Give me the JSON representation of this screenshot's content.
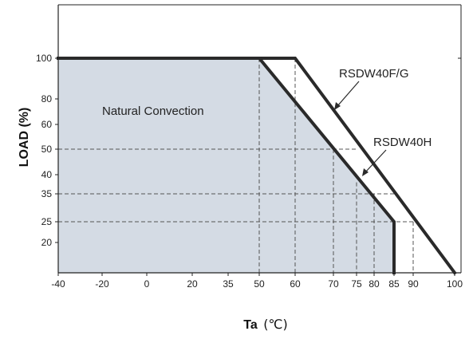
{
  "chart_data": {
    "type": "line",
    "title": "",
    "xlabel": "Ta",
    "xlabel_unit": "(℃)",
    "ylabel": "LOAD (%)",
    "xlim": [
      -40,
      100
    ],
    "ylim": [
      10,
      110
    ],
    "x_ticks": [
      -40,
      -20,
      0,
      20,
      35,
      50,
      60,
      70,
      75,
      80,
      85,
      90,
      100
    ],
    "y_ticks": [
      20,
      25,
      35,
      40,
      50,
      60,
      80,
      100
    ],
    "grid": false,
    "series": [
      {
        "name": "RSDW40F/G",
        "x": [
          -40,
          60,
          100
        ],
        "y": [
          100,
          100,
          10
        ]
      },
      {
        "name": "RSDW40H",
        "x": [
          -40,
          50,
          85,
          85
        ],
        "y": [
          100,
          100,
          25,
          10
        ]
      }
    ],
    "shaded_region_label": "Natural Convection",
    "guide_lines": [
      {
        "axis": "x",
        "value": 50,
        "y_top": 100
      },
      {
        "axis": "x",
        "value": 60,
        "y_top": 100
      },
      {
        "axis": "x",
        "value": 70,
        "y_top": 50
      },
      {
        "axis": "x",
        "value": 75,
        "y_top": 38
      },
      {
        "axis": "x",
        "value": 80,
        "y_top": 35
      },
      {
        "axis": "x",
        "value": 90,
        "y_top": 25
      },
      {
        "axis": "y",
        "value": 50,
        "x_right": 75
      },
      {
        "axis": "y",
        "value": 35,
        "x_right": 85
      },
      {
        "axis": "y",
        "value": 25,
        "x_right": 90
      }
    ],
    "colors": {
      "line": "#2a2a2a",
      "fill": "#d4dbe4",
      "guide": "#555555"
    }
  }
}
